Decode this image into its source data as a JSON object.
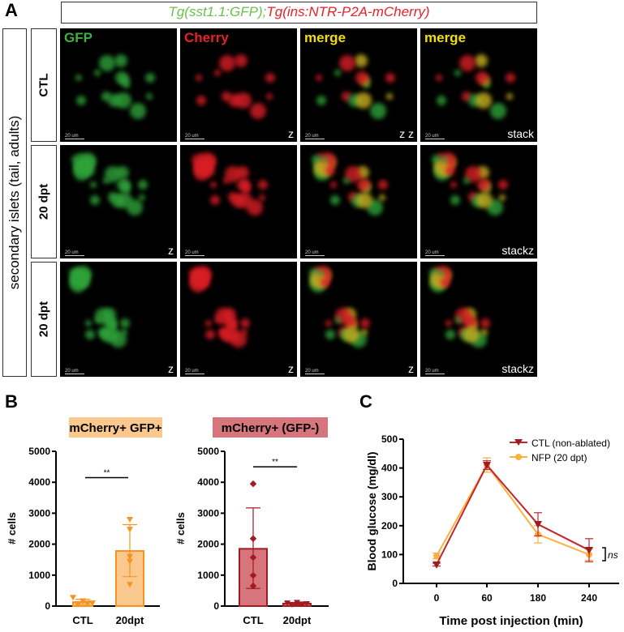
{
  "panel_labels": {
    "a": "A",
    "b": "B",
    "c": "C"
  },
  "title": {
    "green_part": "Tg(sst1.1:GFP);",
    "red_part": "Tg(ins:NTR-P2A-mCherry)"
  },
  "side_label": "secondary islets (tail, adults)",
  "rows": [
    {
      "label": "CTL",
      "images": [
        {
          "channel": "GFP",
          "corner": ""
        },
        {
          "channel": "Cherry",
          "corner": "z"
        },
        {
          "channel": "merge",
          "corner": "z z"
        },
        {
          "channel": "merge",
          "corner": "stack"
        }
      ]
    },
    {
      "label": "20 dpt",
      "images": [
        {
          "channel": "",
          "corner": "z"
        },
        {
          "channel": "",
          "corner": ""
        },
        {
          "channel": "",
          "corner": ""
        },
        {
          "channel": "",
          "corner": "stackz"
        }
      ]
    },
    {
      "label": "20 dpt",
      "images": [
        {
          "channel": "",
          "corner": "z"
        },
        {
          "channel": "",
          "corner": "z"
        },
        {
          "channel": "",
          "corner": "z"
        },
        {
          "channel": "",
          "corner": "stackz"
        }
      ]
    }
  ],
  "scale_bar": "20 um",
  "colors": {
    "gfp": "#3cb043",
    "cherry": "#e8202a",
    "merge": "#f0e000",
    "orange": "#f7931e",
    "orange_fill": "#fbc98e",
    "darkred": "#a01c22",
    "red_fill": "#d6757c",
    "title_green": "#6cc04a",
    "title_red": "#e8202a"
  },
  "chart_data": [
    {
      "type": "bar",
      "title": "mCherry+ GFP+",
      "title_bg": "#fbc98e",
      "ylabel": "# cells",
      "ylim": [
        0,
        5000
      ],
      "yticks": [
        "0",
        "1000",
        "2000",
        "3000",
        "4000",
        "5000"
      ],
      "categories": [
        "CTL",
        "20dpt"
      ],
      "values": [
        130,
        1780
      ],
      "sd": [
        [
          60,
          220
        ],
        [
          950,
          2630
        ]
      ],
      "points": [
        [
          280,
          60,
          170,
          100,
          100
        ],
        [
          2800,
          2480,
          1600,
          1450,
          700
        ]
      ],
      "significance": "**",
      "sig_y": 4150
    },
    {
      "type": "bar",
      "title": "mCherry+ (GFP-)",
      "title_bg": "#d6757c",
      "ylabel": "# cells",
      "ylim": [
        0,
        5000
      ],
      "yticks": [
        "0",
        "1000",
        "2000",
        "3000",
        "4000",
        "5000"
      ],
      "categories": [
        "CTL",
        "20dpt"
      ],
      "values": [
        1850,
        80
      ],
      "sd": [
        [
          570,
          3170
        ],
        [
          40,
          120
        ]
      ],
      "points": [
        [
          3950,
          2180,
          1570,
          990,
          650
        ],
        [
          100,
          50,
          120,
          70,
          80
        ]
      ],
      "significance": "**",
      "sig_y": 4500
    },
    {
      "type": "line",
      "xlabel": "Time post injection (min)",
      "ylabel": "Blood glucose (mg/dl)",
      "ylim": [
        0,
        500
      ],
      "yticks": [
        "0",
        "100",
        "200",
        "300",
        "400",
        "500"
      ],
      "categories": [
        "0",
        "60",
        "180",
        "240"
      ],
      "series": [
        {
          "name": "CTL (non-ablated)",
          "values": [
            65,
            410,
            205,
            115
          ],
          "err": [
            5,
            15,
            40,
            40
          ],
          "marker": "triangle-down",
          "color": "#c0272d"
        },
        {
          "name": "NFP (20 dpt)",
          "values": [
            95,
            410,
            170,
            100
          ],
          "err": [
            10,
            25,
            30,
            20
          ],
          "marker": "circle",
          "color": "#fbb040"
        }
      ],
      "annotation": "ns",
      "legend": "top-right"
    }
  ]
}
